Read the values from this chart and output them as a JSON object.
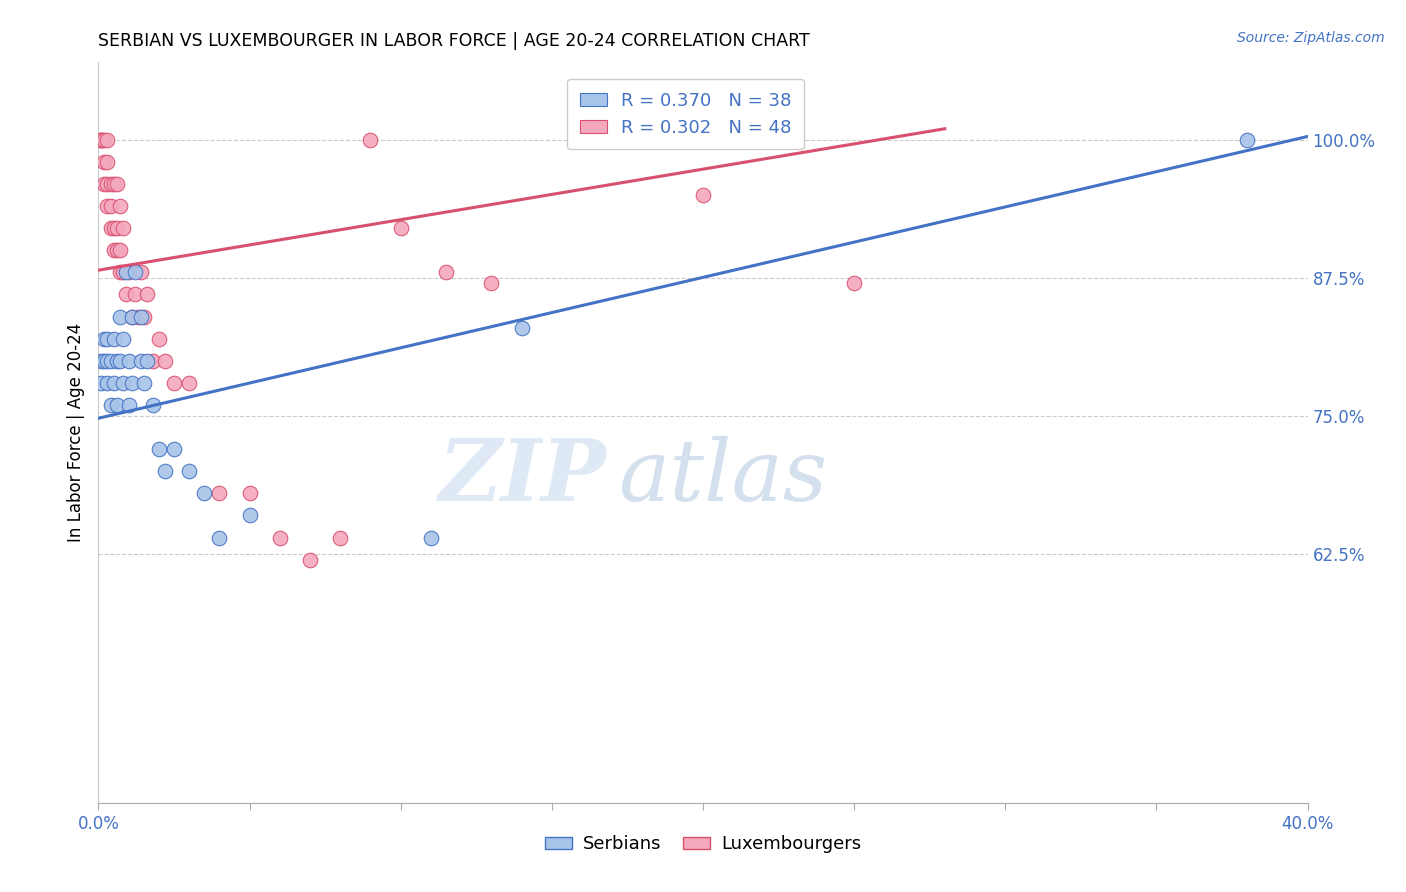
{
  "title": "SERBIAN VS LUXEMBOURGER IN LABOR FORCE | AGE 20-24 CORRELATION CHART",
  "source": "Source: ZipAtlas.com",
  "ylabel_label": "In Labor Force | Age 20-24",
  "xlim": [
    0.0,
    0.4
  ],
  "ylim": [
    0.4,
    1.07
  ],
  "xticks": [
    0.0,
    0.05,
    0.1,
    0.15,
    0.2,
    0.25,
    0.3,
    0.35,
    0.4
  ],
  "xtick_labels": [
    "0.0%",
    "",
    "",
    "",
    "",
    "",
    "",
    "",
    "40.0%"
  ],
  "ytick_positions": [
    0.625,
    0.75,
    0.875,
    1.0
  ],
  "ytick_labels": [
    "62.5%",
    "75.0%",
    "87.5%",
    "100.0%"
  ],
  "serbian_color": "#a8c4e8",
  "luxembourger_color": "#f4a8be",
  "serbian_line_color": "#4472c4",
  "luxembourger_line_color": "#d94f6e",
  "legend_R_serbian": "R = 0.370",
  "legend_N_serbian": "N = 38",
  "legend_R_luxembourger": "R = 0.302",
  "legend_N_luxembourger": "N = 48",
  "serbian_line_x0": 0.0,
  "serbian_line_y0": 0.748,
  "serbian_line_x1": 0.4,
  "serbian_line_y1": 1.003,
  "luxembourger_line_x0": 0.0,
  "luxembourger_line_y0": 0.882,
  "luxembourger_line_x1": 0.28,
  "luxembourger_line_y1": 1.01,
  "serbian_scatter_x": [
    0.001,
    0.001,
    0.002,
    0.002,
    0.003,
    0.003,
    0.003,
    0.004,
    0.004,
    0.005,
    0.005,
    0.006,
    0.006,
    0.007,
    0.007,
    0.008,
    0.008,
    0.009,
    0.01,
    0.01,
    0.011,
    0.011,
    0.012,
    0.014,
    0.014,
    0.015,
    0.016,
    0.018,
    0.02,
    0.022,
    0.025,
    0.03,
    0.035,
    0.04,
    0.05,
    0.11,
    0.14,
    0.38
  ],
  "serbian_scatter_y": [
    0.78,
    0.8,
    0.8,
    0.82,
    0.78,
    0.8,
    0.82,
    0.76,
    0.8,
    0.78,
    0.82,
    0.76,
    0.8,
    0.8,
    0.84,
    0.78,
    0.82,
    0.88,
    0.76,
    0.8,
    0.78,
    0.84,
    0.88,
    0.8,
    0.84,
    0.78,
    0.8,
    0.76,
    0.72,
    0.7,
    0.72,
    0.7,
    0.68,
    0.64,
    0.66,
    0.64,
    0.83,
    1.0
  ],
  "luxembourger_scatter_x": [
    0.001,
    0.001,
    0.001,
    0.002,
    0.002,
    0.002,
    0.003,
    0.003,
    0.003,
    0.003,
    0.004,
    0.004,
    0.004,
    0.005,
    0.005,
    0.005,
    0.006,
    0.006,
    0.006,
    0.007,
    0.007,
    0.007,
    0.008,
    0.008,
    0.009,
    0.01,
    0.011,
    0.012,
    0.013,
    0.014,
    0.015,
    0.016,
    0.018,
    0.02,
    0.022,
    0.025,
    0.03,
    0.04,
    0.05,
    0.06,
    0.07,
    0.08,
    0.09,
    0.1,
    0.115,
    0.13,
    0.2,
    0.25
  ],
  "luxembourger_scatter_y": [
    1.0,
    1.0,
    1.0,
    0.98,
    0.96,
    1.0,
    0.94,
    0.96,
    0.98,
    1.0,
    0.92,
    0.94,
    0.96,
    0.9,
    0.92,
    0.96,
    0.9,
    0.92,
    0.96,
    0.88,
    0.9,
    0.94,
    0.88,
    0.92,
    0.86,
    0.88,
    0.84,
    0.86,
    0.84,
    0.88,
    0.84,
    0.86,
    0.8,
    0.82,
    0.8,
    0.78,
    0.78,
    0.68,
    0.68,
    0.64,
    0.62,
    0.64,
    1.0,
    0.92,
    0.88,
    0.87,
    0.95,
    0.87
  ],
  "watermark_zip": "ZIP",
  "watermark_atlas": "atlas",
  "background_color": "#ffffff",
  "grid_color": "#cccccc",
  "grid_linestyle": "--"
}
